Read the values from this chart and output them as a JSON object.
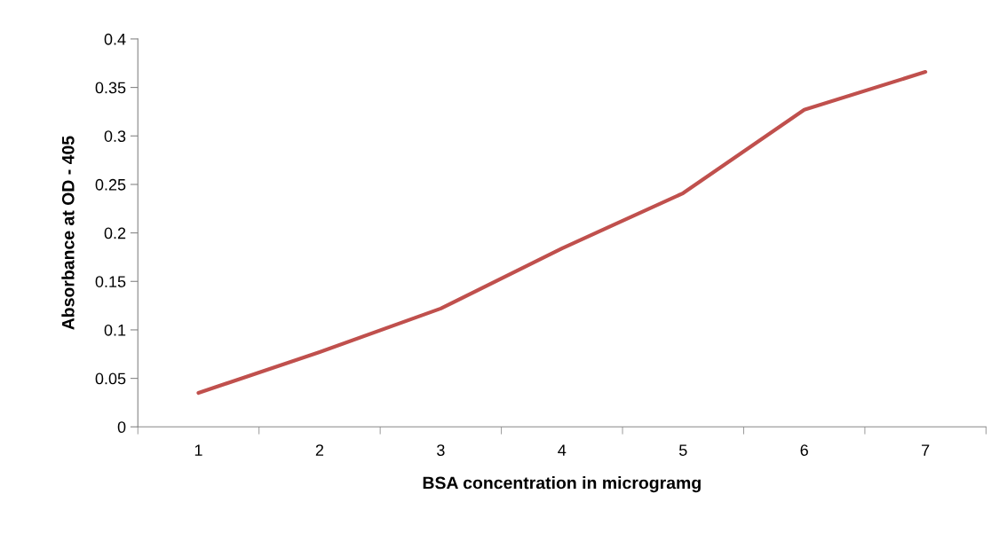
{
  "chart_data": {
    "type": "line",
    "xlabel": "BSA concentration in microgramg",
    "ylabel": "Absorbance at OD - 405",
    "categories": [
      "1",
      "2",
      "3",
      "4",
      "5",
      "6",
      "7"
    ],
    "series": [
      {
        "color": "#c0504d",
        "values": [
          0.035,
          0.077,
          0.122,
          0.184,
          0.241,
          0.327,
          0.366
        ]
      }
    ],
    "ylim": [
      0,
      0.4
    ],
    "yticks": [
      0,
      0.05,
      0.1,
      0.15,
      0.2,
      0.25,
      0.3,
      0.35,
      0.4
    ],
    "grid": false,
    "legend": false,
    "marker": "none",
    "line_style": "solid"
  }
}
